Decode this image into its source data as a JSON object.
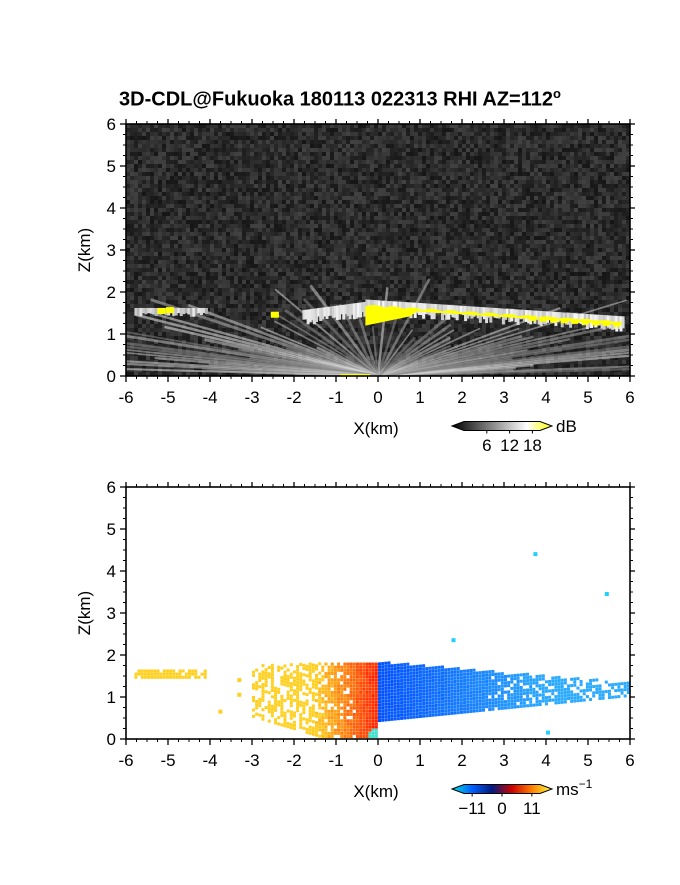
{
  "figure": {
    "title_main": "3D-CDL@Fukuoka 180113 022313 RHI AZ=112",
    "title_degree": "o"
  },
  "chart_data": [
    {
      "type": "heatmap",
      "name": "reflectivity-panel",
      "xlabel": "X(km)",
      "ylabel": "Z(km)",
      "xlim": [
        -6,
        6
      ],
      "ylim": [
        0,
        6
      ],
      "xticks": [
        "-6",
        "-5",
        "-4",
        "-3",
        "-2",
        "-1",
        "0",
        "1",
        "2",
        "3",
        "4",
        "5",
        "6"
      ],
      "yticks": [
        "0",
        "1",
        "2",
        "3",
        "4",
        "5",
        "6"
      ],
      "background_color": "#2a2a2a",
      "highlight_color": "#ffff00",
      "echo_layer": {
        "left_segment_x": [
          -5.8,
          -4.1
        ],
        "left_segment_z": 1.55,
        "main_segment_x": [
          -0.3,
          5.8
        ],
        "top_z_at_origin": 1.7,
        "base_z_at_origin": 1.2,
        "top_z_far_right": 1.3
      },
      "colorbar": {
        "unit": "dB",
        "ticks": [
          "6",
          "12",
          "18"
        ],
        "range": [
          0,
          20
        ],
        "stops": [
          "#000000",
          "#555555",
          "#aaaaaa",
          "#ffffff",
          "#ffff00"
        ]
      }
    },
    {
      "type": "heatmap",
      "name": "velocity-panel",
      "xlabel": "X(km)",
      "ylabel": "Z(km)",
      "xlim": [
        -6,
        6
      ],
      "ylim": [
        0,
        6
      ],
      "xticks": [
        "-6",
        "-5",
        "-4",
        "-3",
        "-2",
        "-1",
        "0",
        "1",
        "2",
        "3",
        "4",
        "5",
        "6"
      ],
      "yticks": [
        "0",
        "1",
        "2",
        "3",
        "4",
        "5",
        "6"
      ],
      "background_color": "#ffffff",
      "approaching_color": "#0050ff",
      "receding_color": "#ff2000",
      "outer_receding_color": "#ffd020",
      "outer_approaching_color": "#2aaaff",
      "isolated_points": [
        [
          3.7,
          4.45
        ],
        [
          5.4,
          3.5
        ],
        [
          1.75,
          2.4
        ],
        [
          4.0,
          0.2
        ]
      ],
      "colorbar": {
        "unit": "ms",
        "unit_exponent": "−1",
        "ticks": [
          "−11",
          "0",
          "11"
        ],
        "range": [
          -14,
          14
        ],
        "stops": [
          "#00e0e0",
          "#0060ff",
          "#001a80",
          "#cc0000",
          "#ff8000",
          "#ffff40"
        ]
      }
    }
  ]
}
